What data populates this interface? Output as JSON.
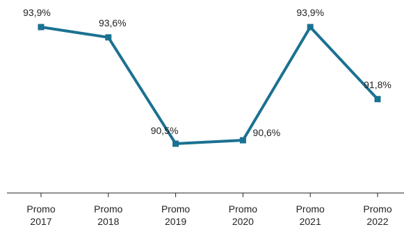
{
  "chart_data": {
    "type": "line",
    "categories": [
      [
        "Promo",
        "2017"
      ],
      [
        "Promo",
        "2018"
      ],
      [
        "Promo",
        "2019"
      ],
      [
        "Promo",
        "2020"
      ],
      [
        "Promo",
        "2021"
      ],
      [
        "Promo",
        "2022"
      ]
    ],
    "series": [
      {
        "values": [
          93.9,
          93.6,
          90.5,
          90.6,
          93.9,
          91.8
        ],
        "labels": [
          "93,9%",
          "93,6%",
          "90,5%",
          "90,6%",
          "93,9%",
          "91,8%"
        ],
        "color": "#1b7191"
      }
    ],
    "ylim": [
      88.0,
      94.5
    ],
    "grid": false,
    "axis_color": "#222222"
  }
}
